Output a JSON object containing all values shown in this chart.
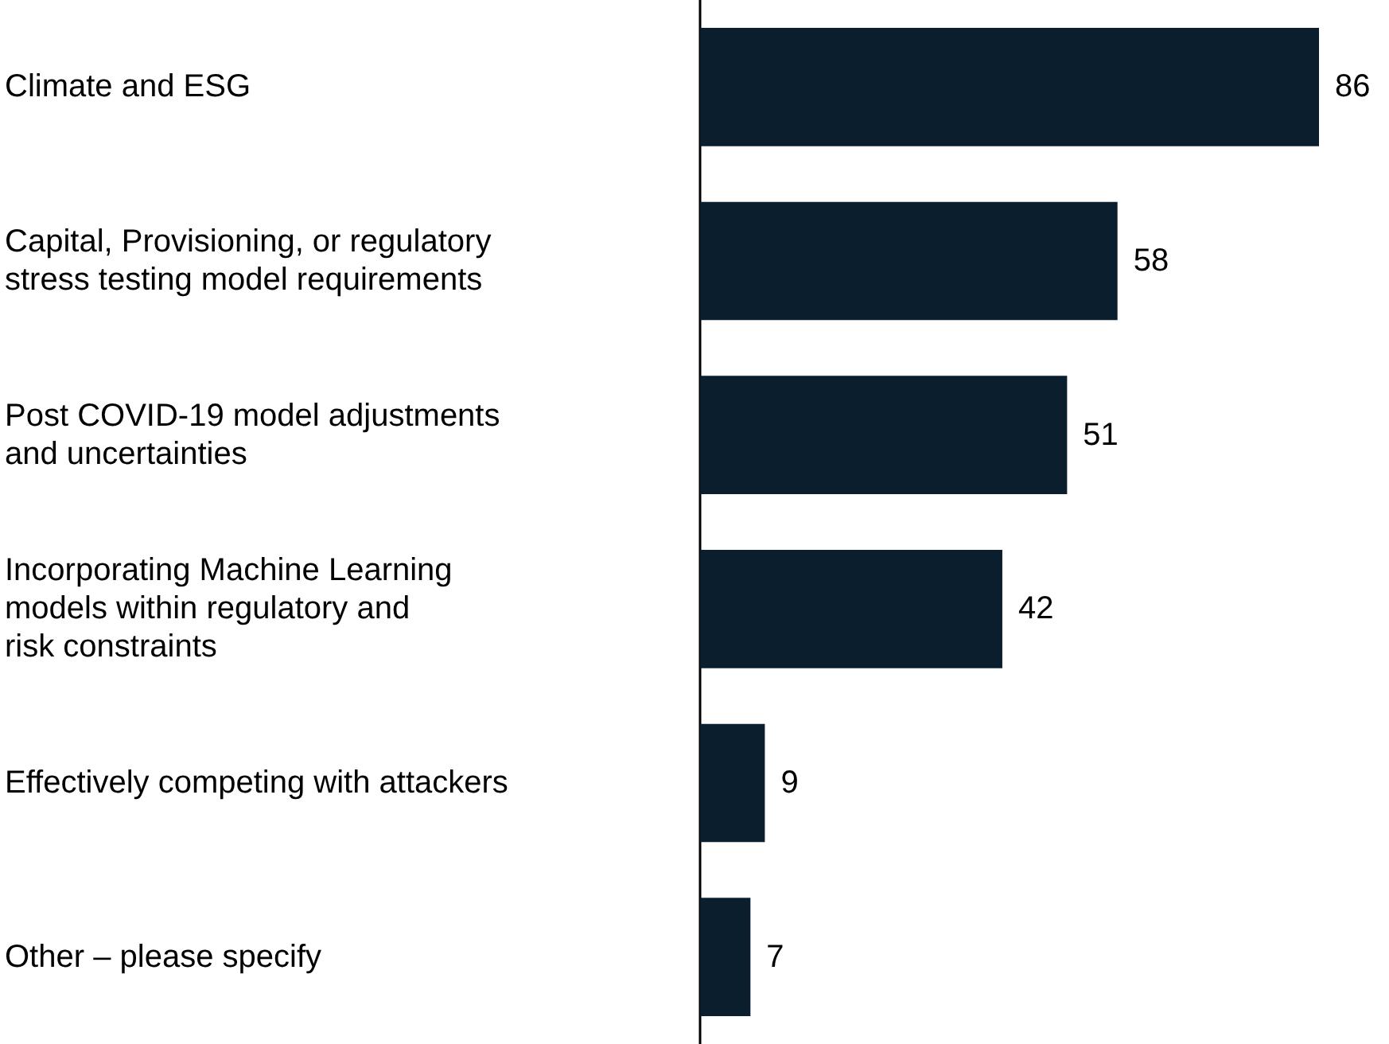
{
  "chart_data": {
    "type": "bar",
    "orientation": "horizontal",
    "categories": [
      "Climate and ESG",
      "Capital, Provisioning, or regulatory\nstress testing model requirements",
      "Post COVID-19 model adjustments\nand uncertainties",
      "Incorporating Machine Learning\nmodels within regulatory and\nrisk constraints",
      "Effectively competing with attackers",
      "Other – please specify"
    ],
    "values": [
      86,
      58,
      51,
      42,
      9,
      7
    ],
    "color": "#0b1e2d",
    "data_labels": true
  }
}
